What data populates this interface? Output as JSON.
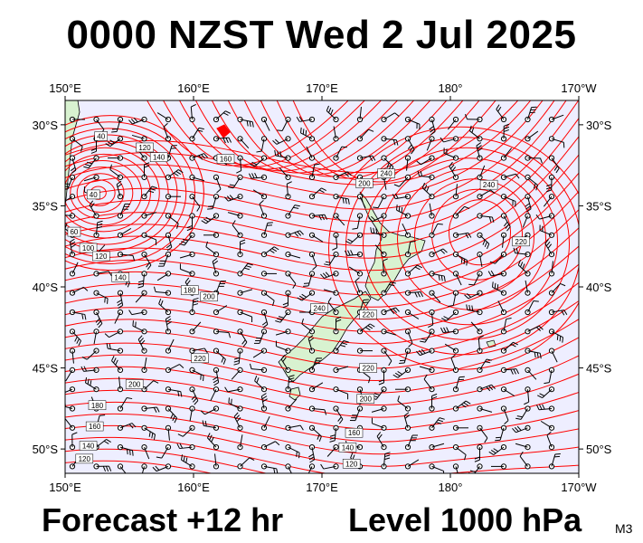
{
  "title": "0000 NZST Wed 2 Jul 2025",
  "footer": {
    "forecast": "Forecast +12 hr",
    "level": "Level 1000 hPa",
    "model": "M3"
  },
  "map": {
    "lon_range": [
      150,
      190
    ],
    "lat_range": [
      -51.5,
      -28.5
    ],
    "lon_ticks": [
      {
        "lon": 150,
        "label": "150°E"
      },
      {
        "lon": 160,
        "label": "160°E"
      },
      {
        "lon": 170,
        "label": "170°E"
      },
      {
        "lon": 180,
        "label": "180°"
      },
      {
        "lon": 190,
        "label": "170°W"
      }
    ],
    "lat_ticks": [
      {
        "lat": -30,
        "label": "30°S"
      },
      {
        "lat": -35,
        "label": "35°S"
      },
      {
        "lat": -40,
        "label": "40°S"
      },
      {
        "lat": -45,
        "label": "45°S"
      },
      {
        "lat": -50,
        "label": "50°S"
      }
    ],
    "contour_labels": [
      {
        "text": "40",
        "lon": 152.8,
        "lat": -30.7
      },
      {
        "text": "40",
        "lon": 152.2,
        "lat": -34.3
      },
      {
        "text": "120",
        "lon": 156.2,
        "lat": -31.4
      },
      {
        "text": "140",
        "lon": 157.3,
        "lat": -32.0
      },
      {
        "text": "160",
        "lon": 162.5,
        "lat": -32.1
      },
      {
        "text": "200",
        "lon": 173.3,
        "lat": -33.6
      },
      {
        "text": "240",
        "lon": 175.0,
        "lat": -33.0
      },
      {
        "text": "240",
        "lon": 183.0,
        "lat": -33.7
      },
      {
        "text": "220",
        "lon": 185.5,
        "lat": -37.2
      },
      {
        "text": "60",
        "lon": 150.7,
        "lat": -36.6
      },
      {
        "text": "100",
        "lon": 151.8,
        "lat": -37.6
      },
      {
        "text": "120",
        "lon": 152.8,
        "lat": -38.1
      },
      {
        "text": "140",
        "lon": 154.3,
        "lat": -39.4
      },
      {
        "text": "180",
        "lon": 159.7,
        "lat": -40.2
      },
      {
        "text": "200",
        "lon": 161.2,
        "lat": -40.6
      },
      {
        "text": "240",
        "lon": 169.8,
        "lat": -41.3
      },
      {
        "text": "220",
        "lon": 173.6,
        "lat": -41.7
      },
      {
        "text": "220",
        "lon": 160.5,
        "lat": -44.4
      },
      {
        "text": "220",
        "lon": 173.6,
        "lat": -45.0
      },
      {
        "text": "200",
        "lon": 155.4,
        "lat": -46.0
      },
      {
        "text": "200",
        "lon": 173.4,
        "lat": -46.9
      },
      {
        "text": "180",
        "lon": 152.5,
        "lat": -47.3
      },
      {
        "text": "160",
        "lon": 152.3,
        "lat": -48.6
      },
      {
        "text": "160",
        "lon": 172.5,
        "lat": -49.0
      },
      {
        "text": "140",
        "lon": 151.8,
        "lat": -49.8
      },
      {
        "text": "140",
        "lon": 172.0,
        "lat": -49.9
      },
      {
        "text": "120",
        "lon": 151.5,
        "lat": -50.6
      },
      {
        "text": "120",
        "lon": 172.3,
        "lat": -50.9
      }
    ],
    "colors": {
      "ocean": "#eeeeff",
      "land": "#d8f2d0",
      "contour": "#ff0000",
      "wind": "#000000",
      "frame": "#000000"
    }
  }
}
